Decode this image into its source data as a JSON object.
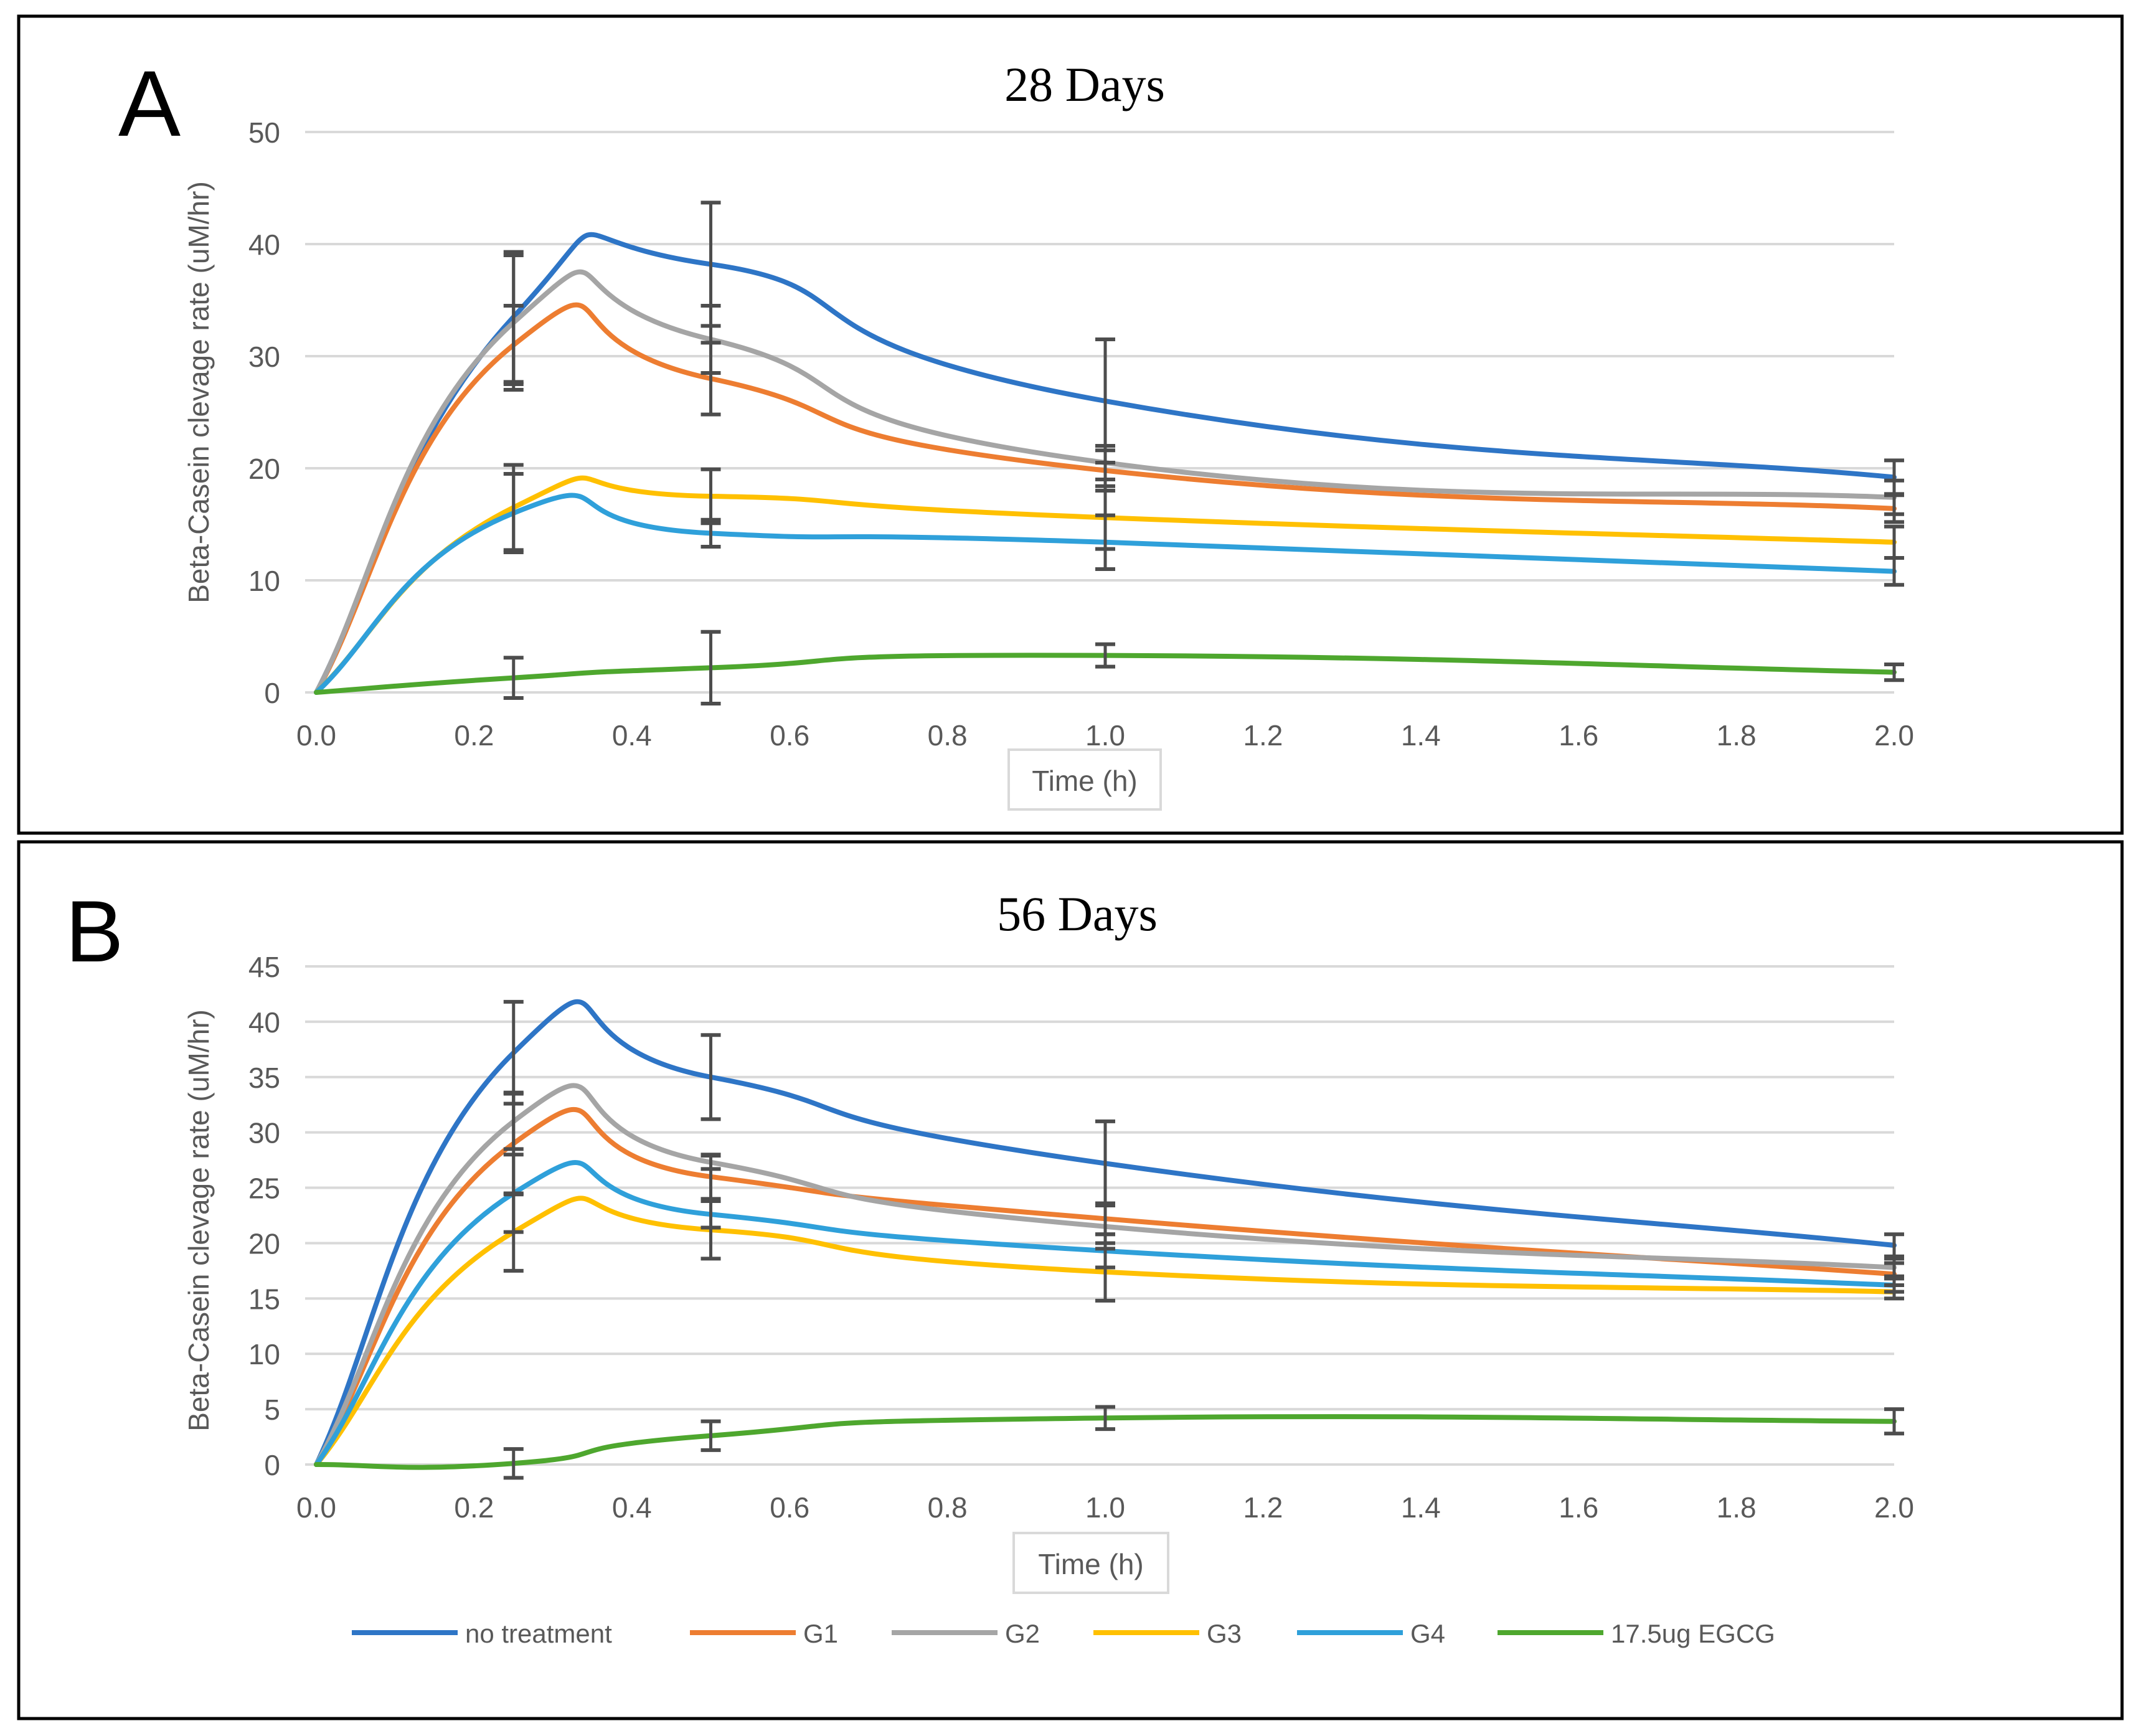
{
  "panels": [
    {
      "letter": "A",
      "chart_data": {
        "type": "line",
        "title": "28 Days",
        "xlabel": "Time (h)",
        "ylabel": "Beta-Casein clevage rate (uM/hr)",
        "xlim": [
          0.0,
          2.0
        ],
        "ylim": [
          0,
          50
        ],
        "xticks": [
          "0.0",
          "0.2",
          "0.4",
          "0.6",
          "0.8",
          "1.0",
          "1.2",
          "1.4",
          "1.6",
          "1.8",
          "2.0"
        ],
        "yticks": [
          "0",
          "10",
          "20",
          "30",
          "40",
          "50"
        ],
        "x": [
          0.0,
          0.25,
          0.5,
          1.0,
          2.0
        ],
        "series": [
          {
            "name": "no treatment",
            "values": [
              0,
              33.5,
              38.2,
              26.0,
              19.2
            ],
            "error": [
              null,
              5.8,
              5.5,
              5.5,
              1.5
            ]
          },
          {
            "name": "G1",
            "values": [
              0,
              31.0,
              28.0,
              19.8,
              16.4
            ],
            "error": [
              null,
              3.5,
              3.2,
              1.8,
              1.2
            ]
          },
          {
            "name": "G2",
            "values": [
              0,
              33.0,
              31.5,
              20.5,
              17.4
            ],
            "error": [
              null,
              6.0,
              3.0,
              1.5,
              1.5
            ]
          },
          {
            "name": "G3",
            "values": [
              0,
              16.5,
              17.5,
              15.6,
              13.4
            ],
            "error": [
              null,
              3.8,
              2.4,
              2.8,
              1.4
            ]
          },
          {
            "name": "G4",
            "values": [
              0,
              16.0,
              14.2,
              13.4,
              10.8
            ],
            "error": [
              null,
              3.5,
              1.2,
              2.4,
              1.2
            ]
          },
          {
            "name": "17.5ug EGCG",
            "values": [
              0,
              1.3,
              2.2,
              3.3,
              1.8
            ],
            "error": [
              null,
              1.8,
              3.2,
              1.0,
              0.7
            ]
          }
        ]
      }
    },
    {
      "letter": "B",
      "chart_data": {
        "type": "line",
        "title": "56 Days",
        "xlabel": "Time (h)",
        "ylabel": "Beta-Casein clevage rate (uM/hr)",
        "xlim": [
          0.0,
          2.0
        ],
        "ylim": [
          0,
          45
        ],
        "xticks": [
          "0.0",
          "0.2",
          "0.4",
          "0.6",
          "0.8",
          "1.0",
          "1.2",
          "1.4",
          "1.6",
          "1.8",
          "2.0"
        ],
        "yticks": [
          "0",
          "5",
          "10",
          "15",
          "20",
          "25",
          "30",
          "35",
          "40",
          "45"
        ],
        "x": [
          0.0,
          0.25,
          0.5,
          1.0,
          2.0
        ],
        "series": [
          {
            "name": "no treatment",
            "values": [
              0,
              37.2,
              35.0,
              27.2,
              19.8
            ],
            "error": [
              null,
              4.6,
              3.8,
              3.8,
              1.0
            ]
          },
          {
            "name": "G1",
            "values": [
              0,
              29.0,
              26.0,
              22.2,
              17.2
            ],
            "error": [
              null,
              4.6,
              2.0,
              1.4,
              1.0
            ]
          },
          {
            "name": "G2",
            "values": [
              0,
              31.0,
              27.3,
              21.5,
              17.8
            ],
            "error": [
              null,
              2.5,
              0.6,
              2.0,
              0.8
            ]
          },
          {
            "name": "G3",
            "values": [
              0,
              21.0,
              21.2,
              17.4,
              15.6
            ],
            "error": [
              null,
              3.5,
              2.6,
              2.6,
              0.6
            ]
          },
          {
            "name": "G4",
            "values": [
              0,
              24.5,
              22.6,
              19.3,
              16.2
            ],
            "error": [
              null,
              3.5,
              1.2,
              1.5,
              0.6
            ]
          },
          {
            "name": "17.5ug EGCG",
            "values": [
              0,
              0.1,
              2.6,
              4.2,
              3.9
            ],
            "error": [
              null,
              1.3,
              1.3,
              1.0,
              1.1
            ]
          }
        ]
      }
    }
  ],
  "legend": [
    {
      "label": "no treatment",
      "color": "#2E75C6"
    },
    {
      "label": "G1",
      "color": "#ED7D31"
    },
    {
      "label": "G2",
      "color": "#A5A5A5"
    },
    {
      "label": "G3",
      "color": "#FFC000"
    },
    {
      "label": "G4",
      "color": "#2FA0DA"
    },
    {
      "label": "17.5ug EGCG",
      "color": "#4EA72E"
    }
  ],
  "colors": {
    "grid": "#D9D9D9",
    "axis_text": "#595959",
    "error_bar": "#4D4D4D",
    "border": "#000000",
    "xlabel_box": "#D9D9D9"
  }
}
